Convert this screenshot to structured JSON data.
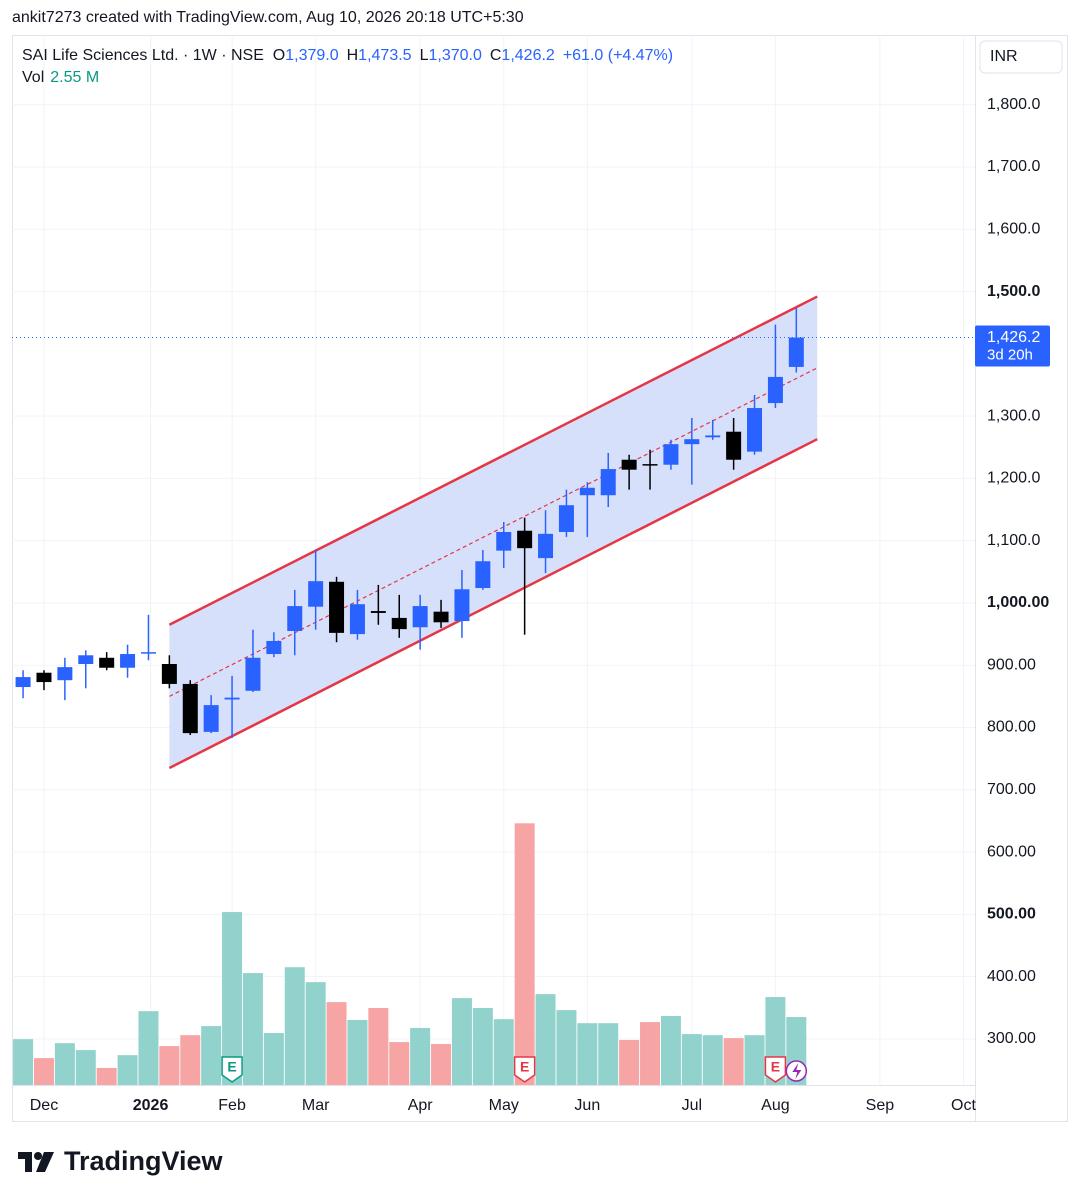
{
  "header": {
    "caption": "ankit7273 created with TradingView.com, Aug 10, 2026 20:18 UTC+5:30"
  },
  "chart_data": {
    "type": "candlestick",
    "title": "SAI Life Sciences Ltd. · 1W · NSE",
    "legend": [
      {
        "key": "O",
        "value": "1,379.0"
      },
      {
        "key": "H",
        "value": "1,473.5"
      },
      {
        "key": "L",
        "value": "1,370.0"
      },
      {
        "key": "C",
        "value": "1,426.2"
      }
    ],
    "change": "+61.0 (+4.47%)",
    "x": [
      0,
      1,
      2,
      3,
      4,
      5,
      6,
      7,
      8,
      9,
      10,
      11,
      12,
      13,
      14,
      15,
      16,
      17,
      18,
      19,
      20,
      21,
      22,
      23,
      24,
      25,
      26,
      27,
      28,
      29,
      30,
      31,
      32,
      33,
      34,
      35,
      36,
      37
    ],
    "open": [
      865,
      888,
      876,
      902,
      912,
      896,
      920,
      902,
      870,
      793,
      845,
      859,
      918,
      955,
      994,
      1034,
      950,
      987,
      976,
      961,
      986,
      971,
      1024,
      1084,
      1116,
      1072,
      1114,
      1173,
      1173,
      1230,
      1223,
      1222,
      1255,
      1266,
      1275,
      1243,
      1321,
      1379
    ],
    "high": [
      892,
      892,
      912,
      924,
      921,
      933,
      981,
      916,
      876,
      852,
      883,
      957,
      953,
      1021,
      1085,
      1042,
      1021,
      1029,
      1013,
      1013,
      1005,
      1053,
      1085,
      1130,
      1137,
      1149,
      1182,
      1194,
      1241,
      1238,
      1246,
      1262,
      1297,
      1294,
      1297,
      1334,
      1447,
      1473.5
    ],
    "low": [
      847,
      860,
      844,
      863,
      892,
      880,
      908,
      863,
      788,
      791,
      783,
      857,
      913,
      916,
      957,
      937,
      941,
      965,
      944,
      925,
      960,
      944,
      1021,
      1056,
      949,
      1048,
      1106,
      1106,
      1154,
      1182,
      1182,
      1214,
      1190,
      1262,
      1214,
      1238,
      1313,
      1370
    ],
    "close": [
      881,
      873,
      897,
      916,
      896,
      918,
      921,
      870,
      791,
      836,
      848,
      912,
      939,
      995,
      1035,
      952,
      998,
      984,
      958,
      995,
      969,
      1022,
      1067,
      1114,
      1088,
      1111,
      1157,
      1185,
      1215,
      1214,
      1221,
      1255,
      1263,
      1269,
      1230,
      1313,
      1363,
      1426.2
    ],
    "volume": {
      "name": "Vol",
      "value_label": "2.55 M",
      "ylim": [
        0,
        39.4
      ],
      "values": [
        1.72,
        1.01,
        1.57,
        1.31,
        0.64,
        1.12,
        2.77,
        1.46,
        1.87,
        2.21,
        6.49,
        4.2,
        1.95,
        4.42,
        3.86,
        3.11,
        2.44,
        2.89,
        1.61,
        2.14,
        1.54,
        3.26,
        2.89,
        2.47,
        9.82,
        3.41,
        2.81,
        2.32,
        2.32,
        1.69,
        2.36,
        2.59,
        1.91,
        1.87,
        1.76,
        1.87,
        3.3,
        2.55
      ]
    },
    "xlim": [
      -0.53,
      45.55
    ],
    "xticks": [
      {
        "value": 1,
        "label": "Dec"
      },
      {
        "value": 6.1,
        "label": "2026"
      },
      {
        "value": 10,
        "label": "Feb"
      },
      {
        "value": 14,
        "label": "Mar"
      },
      {
        "value": 19,
        "label": "Apr"
      },
      {
        "value": 23,
        "label": "May"
      },
      {
        "value": 27,
        "label": "Jun"
      },
      {
        "value": 32,
        "label": "Jul"
      },
      {
        "value": 36,
        "label": "Aug"
      },
      {
        "value": 41,
        "label": "Sep"
      },
      {
        "value": 45,
        "label": "Oct"
      }
    ],
    "ylim": [
      226,
      1912
    ],
    "yticks": [
      {
        "value": 1800,
        "label": "1,800.0"
      },
      {
        "value": 1700,
        "label": "1,700.0"
      },
      {
        "value": 1600,
        "label": "1,600.0"
      },
      {
        "value": 1500,
        "label": "1,500.0"
      },
      {
        "value": 1300,
        "label": "1,300.0"
      },
      {
        "value": 1200,
        "label": "1,200.0"
      },
      {
        "value": 1100,
        "label": "1,100.0"
      },
      {
        "value": 1000,
        "label": "1,000.00"
      },
      {
        "value": 900,
        "label": "900.00"
      },
      {
        "value": 800,
        "label": "800.00"
      },
      {
        "value": 700,
        "label": "700.00"
      },
      {
        "value": 600,
        "label": "600.00"
      },
      {
        "value": 500,
        "label": "500.00"
      },
      {
        "value": 400,
        "label": "400.00"
      },
      {
        "value": 300,
        "label": "300.00"
      }
    ],
    "currency": "INR",
    "last_price": {
      "value": 1426.2,
      "label": "1,426.2",
      "countdown": "3d 20h"
    },
    "channel": {
      "x": [
        7,
        38
      ],
      "upper": [
        965,
        1492
      ],
      "lower": [
        735,
        1263
      ],
      "color": "#e53645",
      "fill": "#d3ddfb"
    },
    "events": [
      {
        "x": 10,
        "label": "E"
      },
      {
        "x": 24,
        "label": "E"
      },
      {
        "x": 36,
        "label": "E"
      }
    ],
    "colors": {
      "up": "#2962ff",
      "down": "#000000",
      "volume_up": "#92d2cc",
      "volume_down": "#f7a5a4"
    },
    "grid": true
  },
  "footer": {
    "brand": "TradingView"
  }
}
